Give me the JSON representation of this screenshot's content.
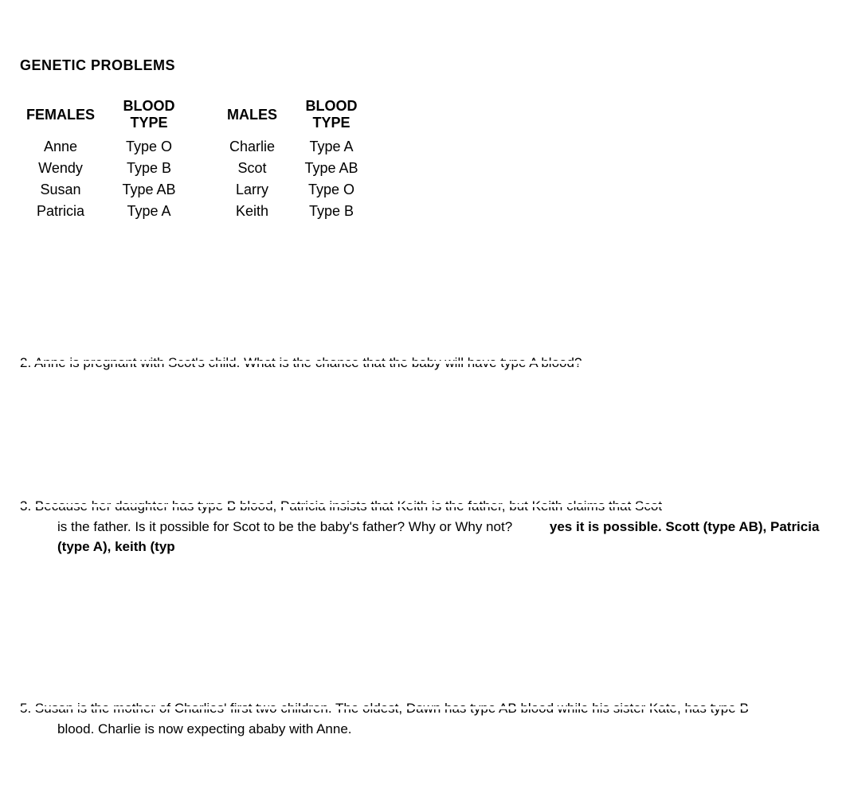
{
  "title": "GENETIC PROBLEMS",
  "table": {
    "headers": {
      "females": "FEMALES",
      "blood1": "BLOOD TYPE",
      "males": "MALES",
      "blood2": "BLOOD TYPE"
    },
    "rows": [
      {
        "female": "Anne",
        "ftype": "Type O",
        "male": "Charlie",
        "mtype": "Type A"
      },
      {
        "female": "Wendy",
        "ftype": "Type B",
        "male": "Scot",
        "mtype": "Type AB"
      },
      {
        "female": "Susan",
        "ftype": "Type AB",
        "male": "Larry",
        "mtype": "Type O"
      },
      {
        "female": "Patricia",
        "ftype": "Type A",
        "male": "Keith",
        "mtype": "Type B"
      }
    ]
  },
  "questions": {
    "q2": {
      "line1": "2. Anne is pregnant with Scot's child. What is the chance that the baby will have type A blood?"
    },
    "q3": {
      "line1": "3. Because her daughter has type B blood, Patricia insists that Keith is the father, but Keith claims that Scot",
      "line2": "is the father. Is it possible for Scot to be the baby's father? Why or Why not?",
      "answer": "yes it is possible. Scott (type AB), Patricia (type A), keith (typ"
    },
    "q5": {
      "line1": "5. Susan is the mother of Charlies' first two children. The oldest, Dawn has type AB blood while his sister Kate, has type B",
      "line2": "blood. Charlie is now expecting ababy with Anne."
    }
  },
  "colors": {
    "background": "#ffffff",
    "text": "#000000",
    "strike": "#ffffff"
  },
  "fonts": {
    "title_size": 18,
    "body_size": 17,
    "table_size": 18
  }
}
